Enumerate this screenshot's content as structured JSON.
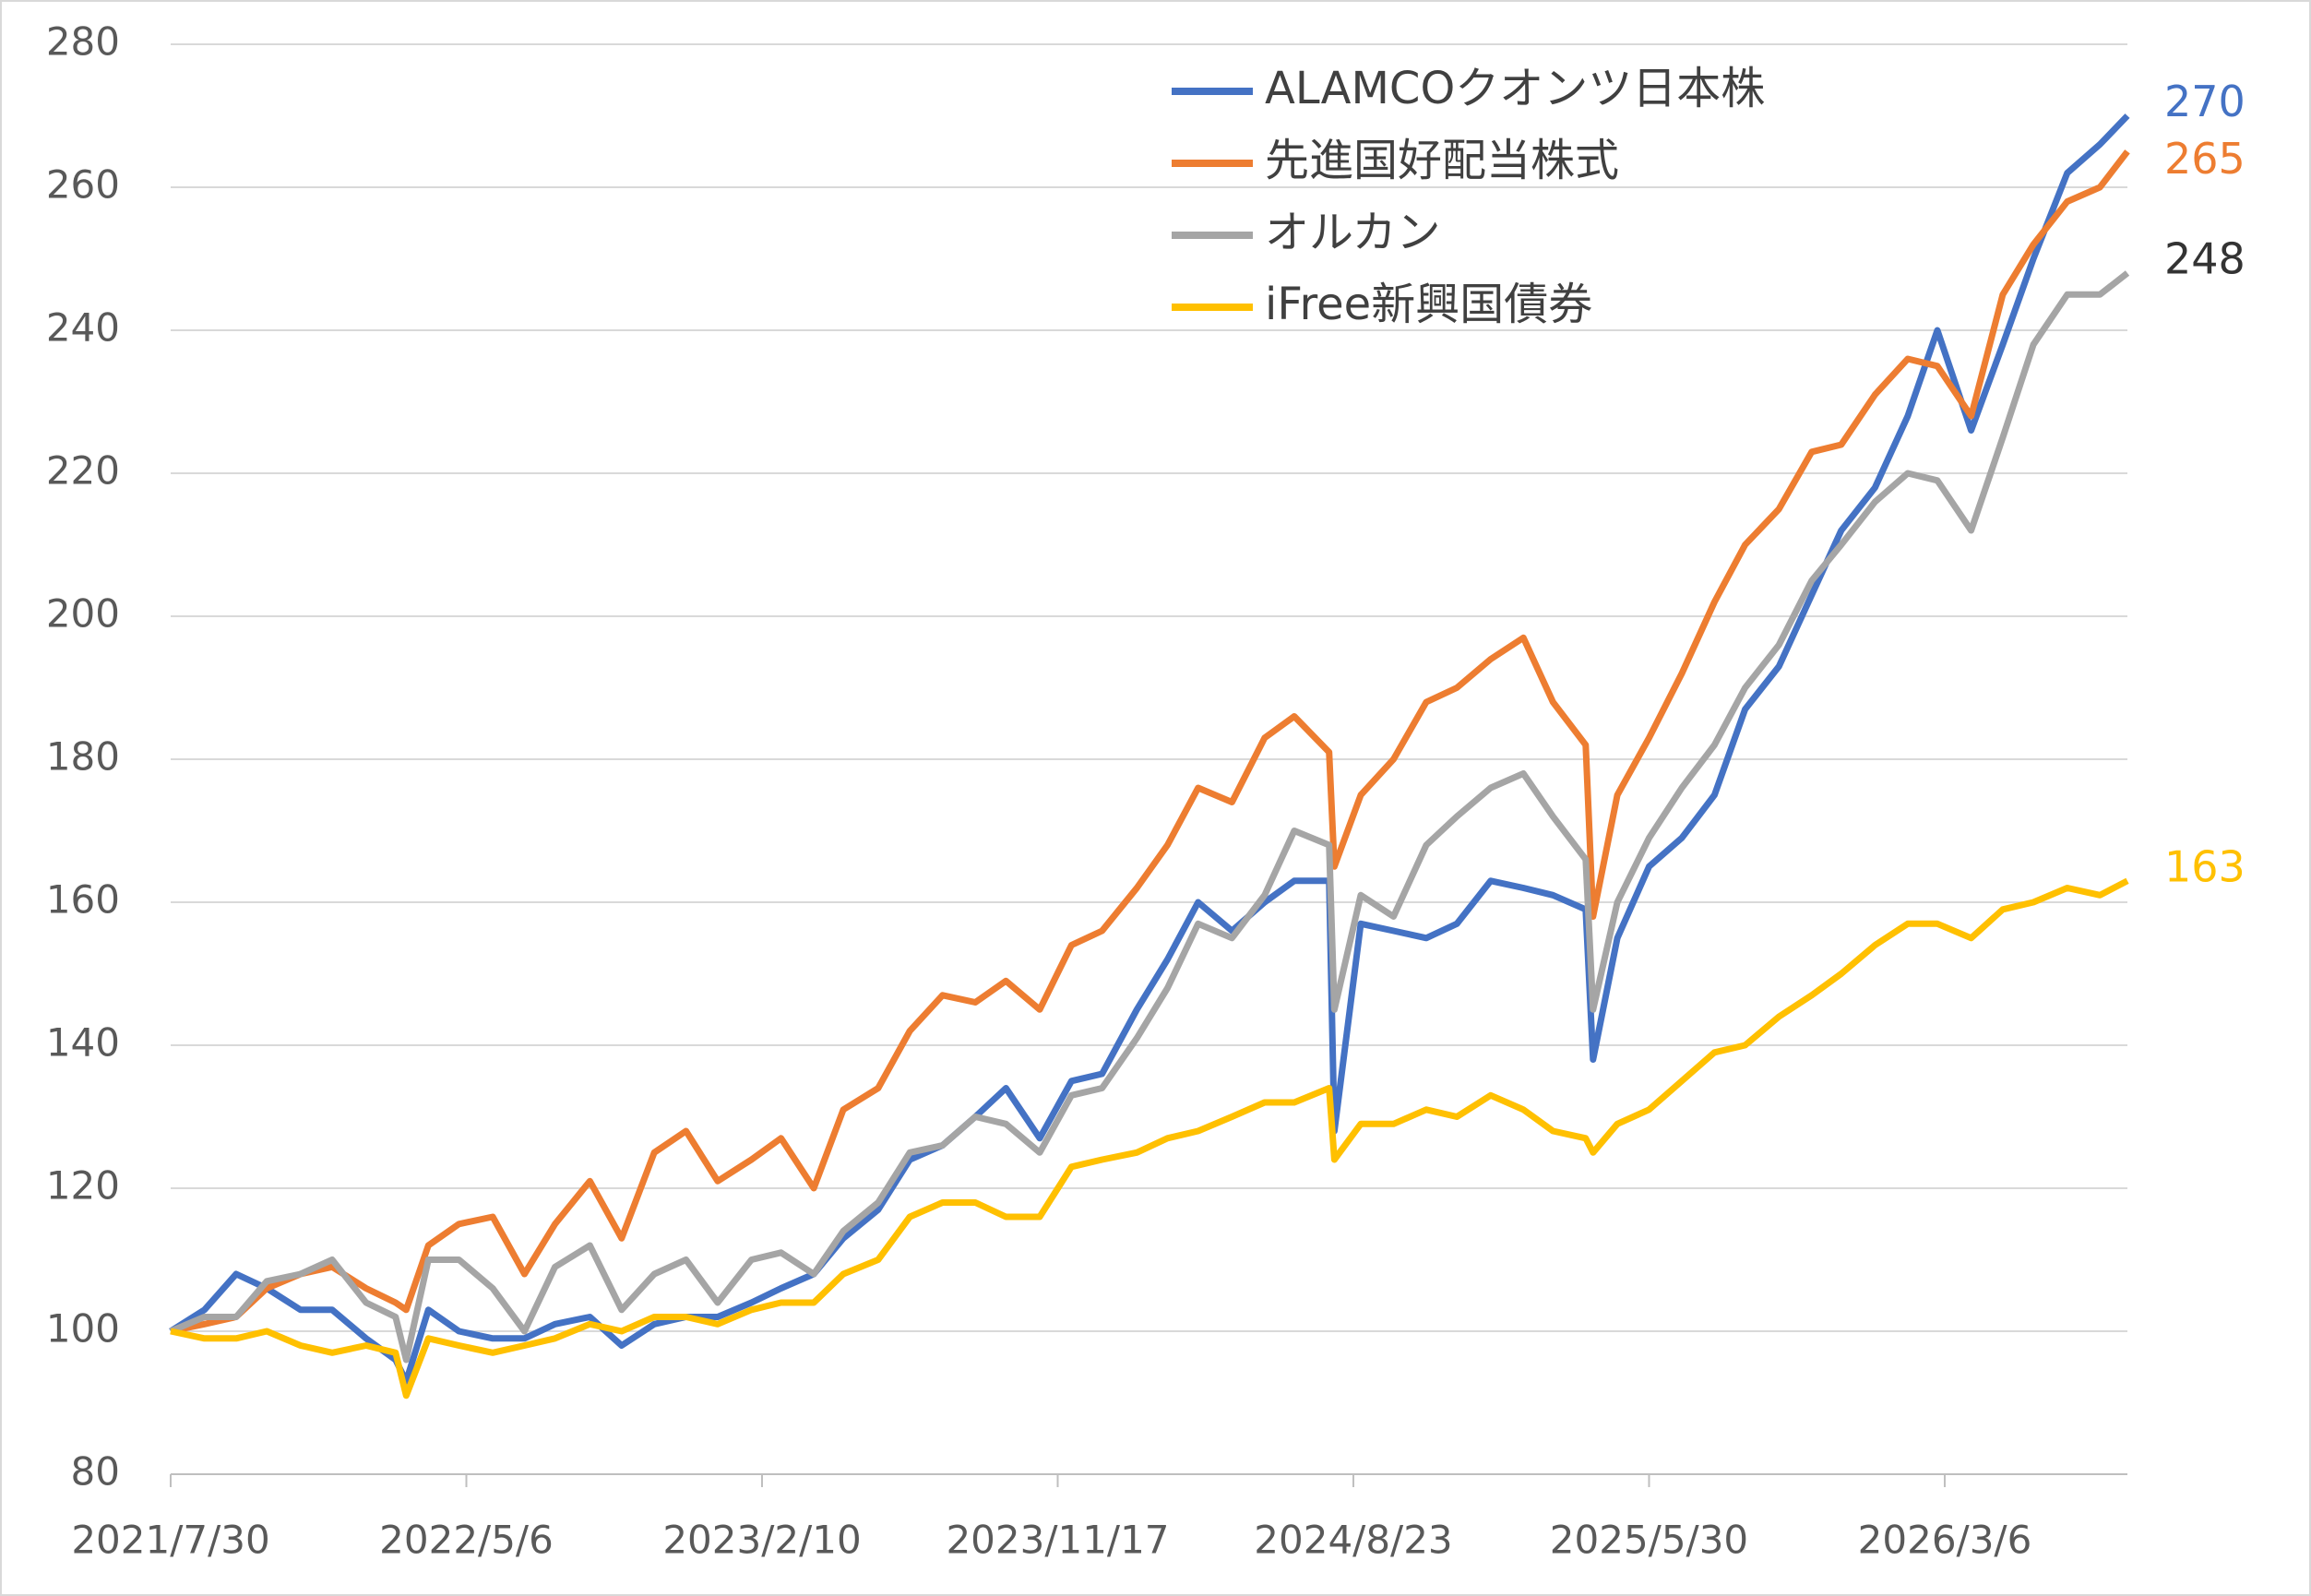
{
  "chart_data": {
    "type": "line",
    "x": [
      "2021/7/30",
      "2021/8/31",
      "2021/9/30",
      "2021/10/29",
      "2021/11/30",
      "2021/12/30",
      "2022/1/31",
      "2022/2/28",
      "2022/3/10",
      "2022/3/31",
      "2022/4/29",
      "2022/5/31",
      "2022/6/30",
      "2022/7/29",
      "2022/8/31",
      "2022/9/30",
      "2022/10/31",
      "2022/11/30",
      "2022/12/30",
      "2023/1/31",
      "2023/2/28",
      "2023/3/31",
      "2023/4/28",
      "2023/5/31",
      "2023/6/30",
      "2023/7/31",
      "2023/8/31",
      "2023/9/29",
      "2023/10/31",
      "2023/11/30",
      "2023/12/29",
      "2024/1/31",
      "2024/2/29",
      "2024/3/29",
      "2024/4/30",
      "2024/5/31",
      "2024/6/28",
      "2024/7/31",
      "2024/8/5",
      "2024/8/30",
      "2024/9/30",
      "2024/10/31",
      "2024/11/29",
      "2024/12/31",
      "2025/1/31",
      "2025/2/28",
      "2025/3/31",
      "2025/4/7",
      "2025/4/30",
      "2025/5/30",
      "2025/6/30",
      "2025/7/31",
      "2025/8/29",
      "2025/9/30",
      "2025/10/31",
      "2025/11/28",
      "2025/12/30",
      "2026/1/30",
      "2026/2/27",
      "2026/3/31",
      "2026/4/30",
      "2026/5/29",
      "2026/6/30",
      "2026/7/31",
      "2026/8/26"
    ],
    "series": [
      {
        "name": "ALAMCOクオンツ日本株",
        "color": "#4472c4",
        "label_color": "#4472c4",
        "values": [
          100,
          103,
          108,
          106,
          103,
          103,
          99,
          96,
          93,
          103,
          100,
          99,
          99,
          101,
          102,
          98,
          101,
          102,
          102,
          104,
          106,
          108,
          113,
          117,
          124,
          126,
          130,
          134,
          127,
          135,
          136,
          145,
          152,
          160,
          156,
          160,
          163,
          163,
          128,
          157,
          156,
          155,
          157,
          163,
          162,
          161,
          159,
          138,
          155,
          165,
          169,
          175,
          187,
          193,
          203,
          212,
          218,
          228,
          240,
          226,
          238,
          250,
          262,
          266,
          270
        ]
      },
      {
        "name": "先進国好配当株式",
        "color": "#ed7d31",
        "label_color": "#ed7d31",
        "values": [
          100,
          101,
          102,
          106,
          108,
          109,
          106,
          104,
          103,
          112,
          115,
          116,
          108,
          115,
          121,
          113,
          125,
          128,
          121,
          124,
          127,
          120,
          131,
          134,
          142,
          147,
          146,
          149,
          145,
          154,
          156,
          162,
          168,
          176,
          174,
          183,
          186,
          181,
          165,
          175,
          180,
          188,
          190,
          194,
          197,
          188,
          182,
          158,
          175,
          183,
          192,
          202,
          210,
          215,
          223,
          224,
          231,
          236,
          235,
          228,
          245,
          252,
          258,
          260,
          265
        ]
      },
      {
        "name": "オルカン",
        "color": "#a5a5a5",
        "label_color": "#333333",
        "values": [
          100,
          102,
          102,
          107,
          108,
          110,
          104,
          102,
          96,
          110,
          110,
          106,
          100,
          109,
          112,
          103,
          108,
          110,
          104,
          110,
          111,
          108,
          114,
          118,
          125,
          126,
          130,
          129,
          125,
          133,
          134,
          141,
          148,
          157,
          155,
          161,
          170,
          168,
          145,
          161,
          158,
          168,
          172,
          176,
          178,
          172,
          166,
          145,
          160,
          169,
          176,
          182,
          190,
          196,
          205,
          210,
          216,
          220,
          219,
          212,
          225,
          238,
          245,
          245,
          248
        ]
      },
      {
        "name": "iFree新興国債券",
        "color": "#ffc000",
        "label_color": "#ffc000",
        "values": [
          100,
          99,
          99,
          100,
          98,
          97,
          98,
          97,
          91,
          99,
          98,
          97,
          98,
          99,
          101,
          100,
          102,
          102,
          101,
          103,
          104,
          104,
          108,
          110,
          116,
          118,
          118,
          116,
          116,
          123,
          124,
          125,
          127,
          128,
          130,
          132,
          132,
          134,
          124,
          129,
          129,
          131,
          130,
          133,
          131,
          128,
          127,
          125,
          129,
          131,
          135,
          139,
          140,
          144,
          147,
          150,
          154,
          157,
          157,
          155,
          159,
          160,
          162,
          161,
          163
        ]
      }
    ],
    "xlim": [
      "2021/7/30",
      "2026/8/26"
    ],
    "xticks": [
      "2021/7/30",
      "2022/5/6",
      "2023/2/10",
      "2023/11/17",
      "2024/8/23",
      "2025/5/30",
      "2026/3/6"
    ],
    "ylim": [
      80,
      280
    ],
    "yticks": [
      80,
      100,
      120,
      140,
      160,
      180,
      200,
      220,
      240,
      260,
      280
    ],
    "grid": true,
    "legend": "top"
  }
}
